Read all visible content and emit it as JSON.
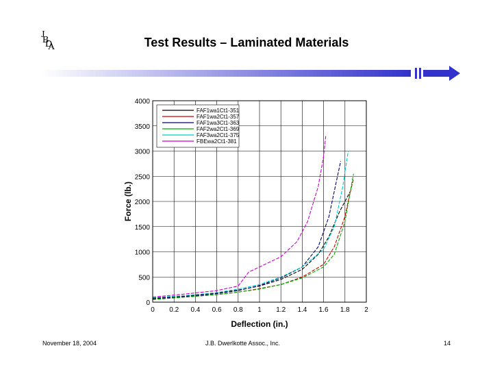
{
  "slide": {
    "logo_letters": [
      "J",
      "B",
      "D",
      "A"
    ],
    "title": "Test Results – Laminated Materials",
    "footer_left": "November 18, 2004",
    "footer_center": "J.B. Dwerlkotte Assoc., Inc.",
    "page_number": "14"
  },
  "colors": {
    "banner_start": "#ffffff",
    "banner_end": "#3333cc"
  },
  "chart_data": {
    "type": "line",
    "title": "",
    "xlabel": "Deflection (in.)",
    "ylabel": "Force (lb.)",
    "xlim": [
      0,
      2
    ],
    "ylim": [
      0,
      4000
    ],
    "x_ticks": [
      "0",
      "0.2",
      "0.4",
      "0.6",
      "0.8",
      "1",
      "1.2",
      "1.4",
      "1.6",
      "1.8",
      "2"
    ],
    "y_ticks": [
      "0",
      "500",
      "1000",
      "1500",
      "2000",
      "2500",
      "3000",
      "3500",
      "4000"
    ],
    "legend_position": "top-left",
    "series": [
      {
        "name": "FAF1wa1Ct1-351",
        "color": "#000000",
        "x": [
          0,
          0.3,
          0.6,
          0.8,
          1.0,
          1.2,
          1.4,
          1.55,
          1.65,
          1.75,
          1.8,
          1.85
        ],
        "y": [
          80,
          120,
          180,
          240,
          320,
          450,
          650,
          950,
          1300,
          1800,
          2000,
          2200
        ]
      },
      {
        "name": "FAF1wa2Ct1-357",
        "color": "#cc0000",
        "x": [
          0,
          0.3,
          0.6,
          0.8,
          1.0,
          1.2,
          1.4,
          1.6,
          1.7,
          1.8,
          1.84,
          1.88
        ],
        "y": [
          60,
          100,
          150,
          200,
          270,
          350,
          500,
          750,
          1100,
          1700,
          2100,
          2450
        ]
      },
      {
        "name": "FAF1wa3Ct1-363",
        "color": "#000066",
        "x": [
          0,
          0.3,
          0.6,
          0.8,
          1.0,
          1.2,
          1.4,
          1.55,
          1.65,
          1.72,
          1.76
        ],
        "y": [
          70,
          110,
          170,
          230,
          330,
          480,
          700,
          1100,
          1700,
          2400,
          2800
        ]
      },
      {
        "name": "FAF2wa2Ct1-369",
        "color": "#00aa00",
        "x": [
          0,
          0.3,
          0.6,
          0.8,
          1.0,
          1.2,
          1.4,
          1.6,
          1.7,
          1.8,
          1.88
        ],
        "y": [
          50,
          100,
          150,
          200,
          260,
          350,
          480,
          700,
          950,
          1600,
          2550
        ]
      },
      {
        "name": "FAF3wa2Ct1-375",
        "color": "#00cccc",
        "x": [
          0,
          0.3,
          0.6,
          0.8,
          1.0,
          1.2,
          1.4,
          1.6,
          1.7,
          1.78,
          1.83
        ],
        "y": [
          90,
          130,
          190,
          260,
          350,
          500,
          700,
          1050,
          1500,
          2300,
          3000
        ]
      },
      {
        "name": "FBEwa2Ct1-381",
        "color": "#cc00cc",
        "x": [
          0,
          0.3,
          0.6,
          0.8,
          0.9,
          1.0,
          1.2,
          1.35,
          1.45,
          1.55,
          1.6,
          1.62
        ],
        "y": [
          100,
          160,
          230,
          320,
          600,
          700,
          900,
          1200,
          1600,
          2300,
          2900,
          3300
        ]
      }
    ]
  }
}
